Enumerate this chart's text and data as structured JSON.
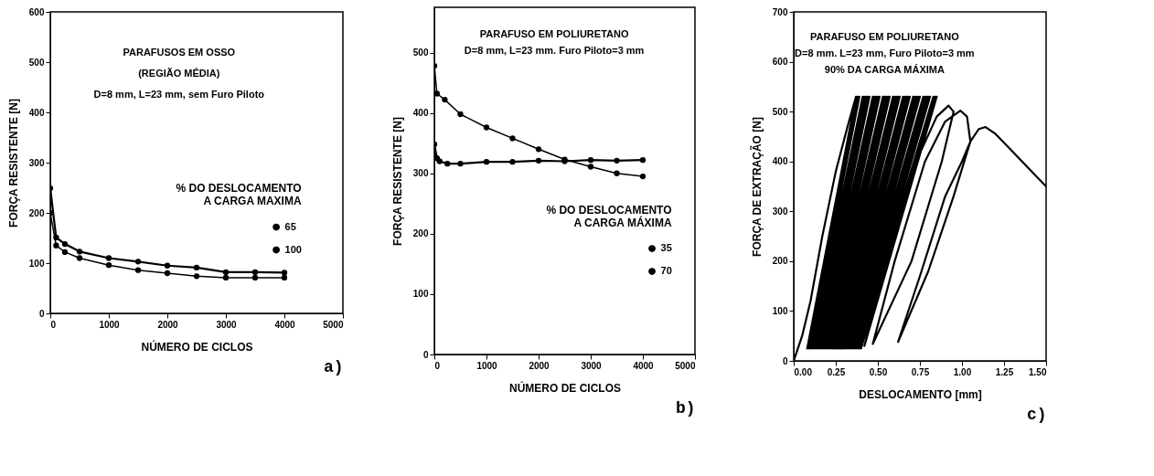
{
  "chart_data": [
    {
      "type": "line",
      "title": "a)",
      "xlabel": "NÚMERO DE CICLOS",
      "ylabel": "FORÇA RESISTENTE [N]",
      "legend_title": "% DO DESLOCAMENTO\nA CARGA MAXIMA",
      "legend": "right",
      "marker": "circle",
      "grid": false,
      "annotations": [
        "PARAFUSOS EM OSSO",
        "(REGIÃO MÉDIA)",
        "D=8 mm, L=23 mm, sem Furo Piloto"
      ],
      "xlim": [
        0,
        5000
      ],
      "xticks": [
        0,
        1000,
        2000,
        3000,
        4000,
        5000
      ],
      "ylim": [
        0,
        600
      ],
      "yticks": [
        0,
        100,
        200,
        300,
        400,
        500,
        600
      ],
      "x": [
        0,
        100,
        250,
        500,
        1000,
        1500,
        2000,
        2500,
        3000,
        3500,
        4000
      ],
      "series": [
        {
          "name": "65",
          "color": "#000000",
          "values": [
            249,
            151,
            138,
            123,
            110,
            103,
            95,
            91,
            82,
            82,
            81
          ]
        },
        {
          "name": "100",
          "color": "#000000",
          "values": [
            200,
            135,
            122,
            110,
            96,
            86,
            80,
            74,
            71,
            71,
            71
          ]
        }
      ]
    },
    {
      "type": "line",
      "title": "b)",
      "xlabel": "NÚMERO DE CICLOS",
      "ylabel": "FORÇA RESISTENTE [N]",
      "legend_title": "% DO DESLOCAMENTO\nA CARGA MÁXIMA",
      "legend": "right",
      "marker": "circle",
      "grid": false,
      "annotations": [
        "PARAFUSO EM POLIURETANO",
        "D=8 mm, L=23 mm. Furo Piloto=3 mm"
      ],
      "xlim": [
        0,
        5000
      ],
      "xticks": [
        0,
        1000,
        2000,
        3000,
        4000,
        5000
      ],
      "ylim": [
        0,
        575
      ],
      "yticks": [
        0,
        100,
        200,
        300,
        400,
        500
      ],
      "series": [
        {
          "name": "35",
          "color": "#000000",
          "x": [
            0,
            50,
            100,
            250,
            500,
            1000,
            1500,
            2000,
            2500,
            3000,
            3500,
            4000
          ],
          "values": [
            348,
            325,
            320,
            316,
            316,
            319,
            319,
            321,
            320,
            322,
            321,
            322
          ]
        },
        {
          "name": "70",
          "color": "#000000",
          "x": [
            0,
            50,
            200,
            500,
            1000,
            1500,
            2000,
            2500,
            3000,
            3500,
            4000
          ],
          "values": [
            478,
            432,
            422,
            398,
            376,
            358,
            340,
            323,
            311,
            300,
            295
          ]
        }
      ]
    },
    {
      "type": "line",
      "title": "c)",
      "xlabel": "DESLOCAMENTO [mm]",
      "ylabel": "FORÇA DE EXTRAÇÃO [N]",
      "grid": false,
      "annotations": [
        "PARAFUSO EM POLIURETANO",
        "D=8 mm. L=23 mm, Furo Piloto=3 mm",
        "90% DA CARGA MÁXIMA"
      ],
      "xlim": [
        0,
        1.5
      ],
      "xticks": [
        {
          "value": 0,
          "label": "0.00"
        },
        0.25,
        {
          "value": 0.5,
          "label": "0.50"
        },
        0.75,
        {
          "value": 1,
          "label": "1.00"
        },
        1.25,
        {
          "value": 1.5,
          "label": "1.50"
        }
      ],
      "ylim": [
        0,
        700
      ],
      "yticks": [
        0,
        100,
        200,
        300,
        400,
        500,
        600,
        700
      ],
      "series": [
        {
          "color": "#000000",
          "x": [
            0,
            0.05,
            0.1,
            0.17,
            0.25,
            0.32,
            0.37,
            0.08,
            0.38,
            0.09,
            0.39,
            0.1,
            0.41,
            0.1,
            0.42,
            0.11,
            0.43,
            0.12,
            0.44,
            0.13,
            0.45,
            0.14,
            0.47,
            0.14,
            0.48,
            0.15,
            0.49,
            0.16,
            0.5,
            0.17,
            0.51,
            0.18,
            0.53,
            0.19,
            0.54,
            0.19,
            0.55,
            0.2,
            0.56,
            0.21,
            0.57,
            0.22,
            0.59,
            0.23,
            0.6,
            0.24,
            0.61,
            0.24,
            0.62,
            0.25,
            0.63,
            0.26,
            0.65,
            0.27,
            0.66,
            0.28,
            0.67,
            0.29,
            0.68,
            0.29,
            0.69,
            0.3,
            0.71,
            0.31,
            0.72,
            0.32,
            0.73,
            0.33,
            0.74,
            0.33,
            0.75,
            0.34,
            0.77,
            0.35,
            0.78,
            0.36,
            0.79,
            0.37,
            0.8,
            0.38,
            0.81,
            0.38,
            0.83,
            0.39,
            0.84,
            0.4,
            0.85,
            0.42,
            0.55,
            0.7,
            0.85,
            0.92,
            0.95,
            0.88,
            0.7,
            0.47,
            0.6,
            0.78,
            0.9,
            0.99,
            1.03,
            1.05,
            0.95,
            0.8,
            0.62,
            0.75,
            0.9,
            1.0,
            1.05,
            1.1,
            1.14,
            1.2,
            1.3,
            1.4,
            1.5
          ],
          "values": [
            0,
            50,
            120,
            250,
            380,
            470,
            530,
            25,
            530,
            25,
            530,
            25,
            530,
            25,
            530,
            25,
            530,
            25,
            530,
            25,
            530,
            25,
            530,
            25,
            530,
            25,
            530,
            25,
            530,
            25,
            530,
            25,
            530,
            25,
            530,
            25,
            530,
            25,
            530,
            25,
            530,
            25,
            530,
            25,
            530,
            25,
            530,
            25,
            530,
            25,
            530,
            25,
            530,
            25,
            530,
            25,
            530,
            25,
            530,
            25,
            530,
            25,
            530,
            25,
            530,
            25,
            530,
            25,
            530,
            25,
            530,
            25,
            530,
            25,
            530,
            25,
            530,
            25,
            530,
            25,
            530,
            25,
            530,
            25,
            530,
            25,
            530,
            30,
            200,
            380,
            490,
            512,
            500,
            400,
            200,
            34,
            200,
            400,
            480,
            502,
            490,
            440,
            330,
            180,
            38,
            170,
            330,
            400,
            440,
            465,
            469,
            455,
            420,
            385,
            350
          ]
        }
      ]
    }
  ]
}
